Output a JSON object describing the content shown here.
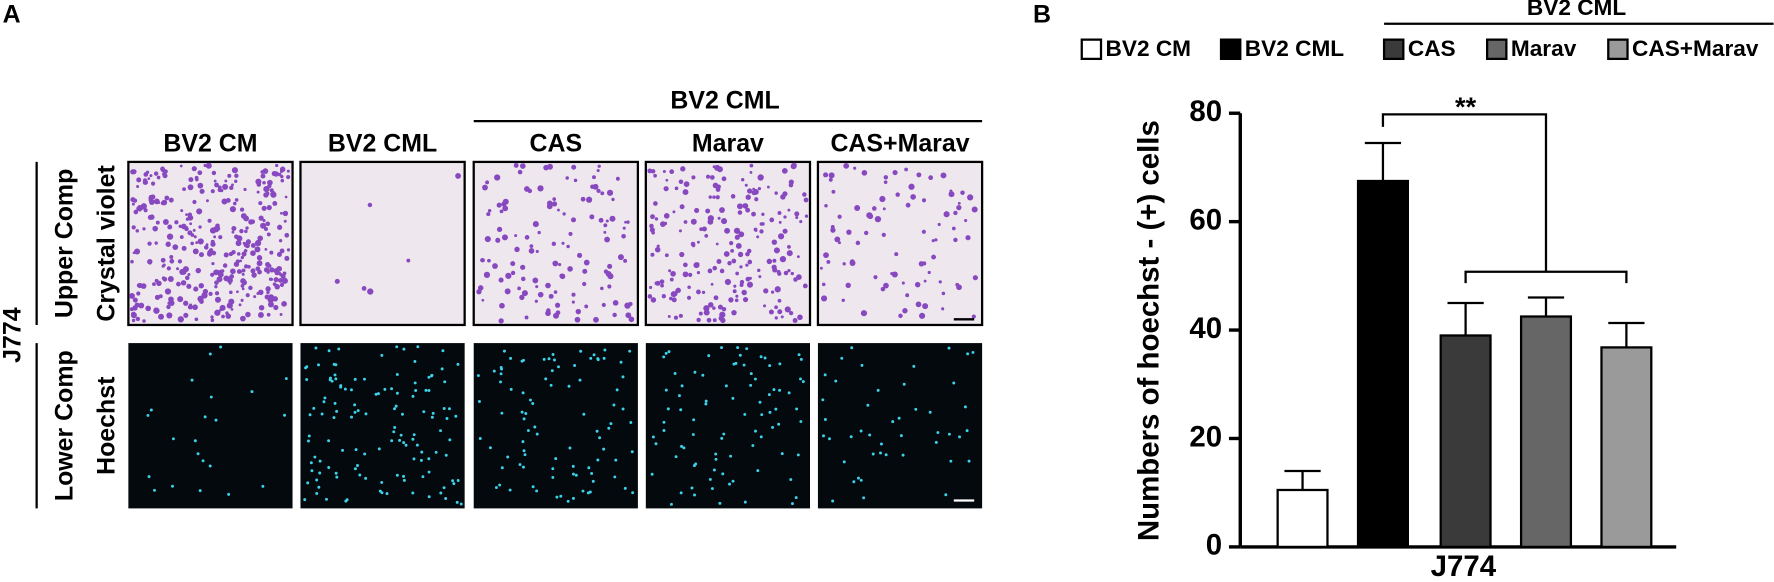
{
  "panel_a": {
    "label": "A",
    "group_label": "BV2 CML",
    "columns": [
      "BV2 CM",
      "BV2 CML",
      "CAS",
      "Marav",
      "CAS+Marav"
    ],
    "row_group": "J774",
    "rows": [
      {
        "compartment": "Upper Comp",
        "stain": "Crystal violet"
      },
      {
        "compartment": "Lower Comp",
        "stain": "Hoechst"
      }
    ]
  },
  "chart_data": {
    "type": "bar",
    "panel_label": "B",
    "legend_group": "BV2 CML",
    "categories": [
      "BV2 CM",
      "BV2 CML",
      "CAS",
      "Marav",
      "CAS+Marav"
    ],
    "values": [
      10.5,
      67.5,
      39,
      42.5,
      36.8
    ],
    "errors": [
      3.5,
      7,
      6,
      3.5,
      4.5
    ],
    "colors": [
      "#ffffff",
      "#000000",
      "#3a3a3a",
      "#666666",
      "#9a9a9a"
    ],
    "ylim": [
      0,
      80
    ],
    "yticks": [
      0,
      20,
      40,
      60,
      80
    ],
    "xlabel": "J774",
    "ylabel": "Numbers of hoechst - (+) cells",
    "annotation": "**"
  }
}
